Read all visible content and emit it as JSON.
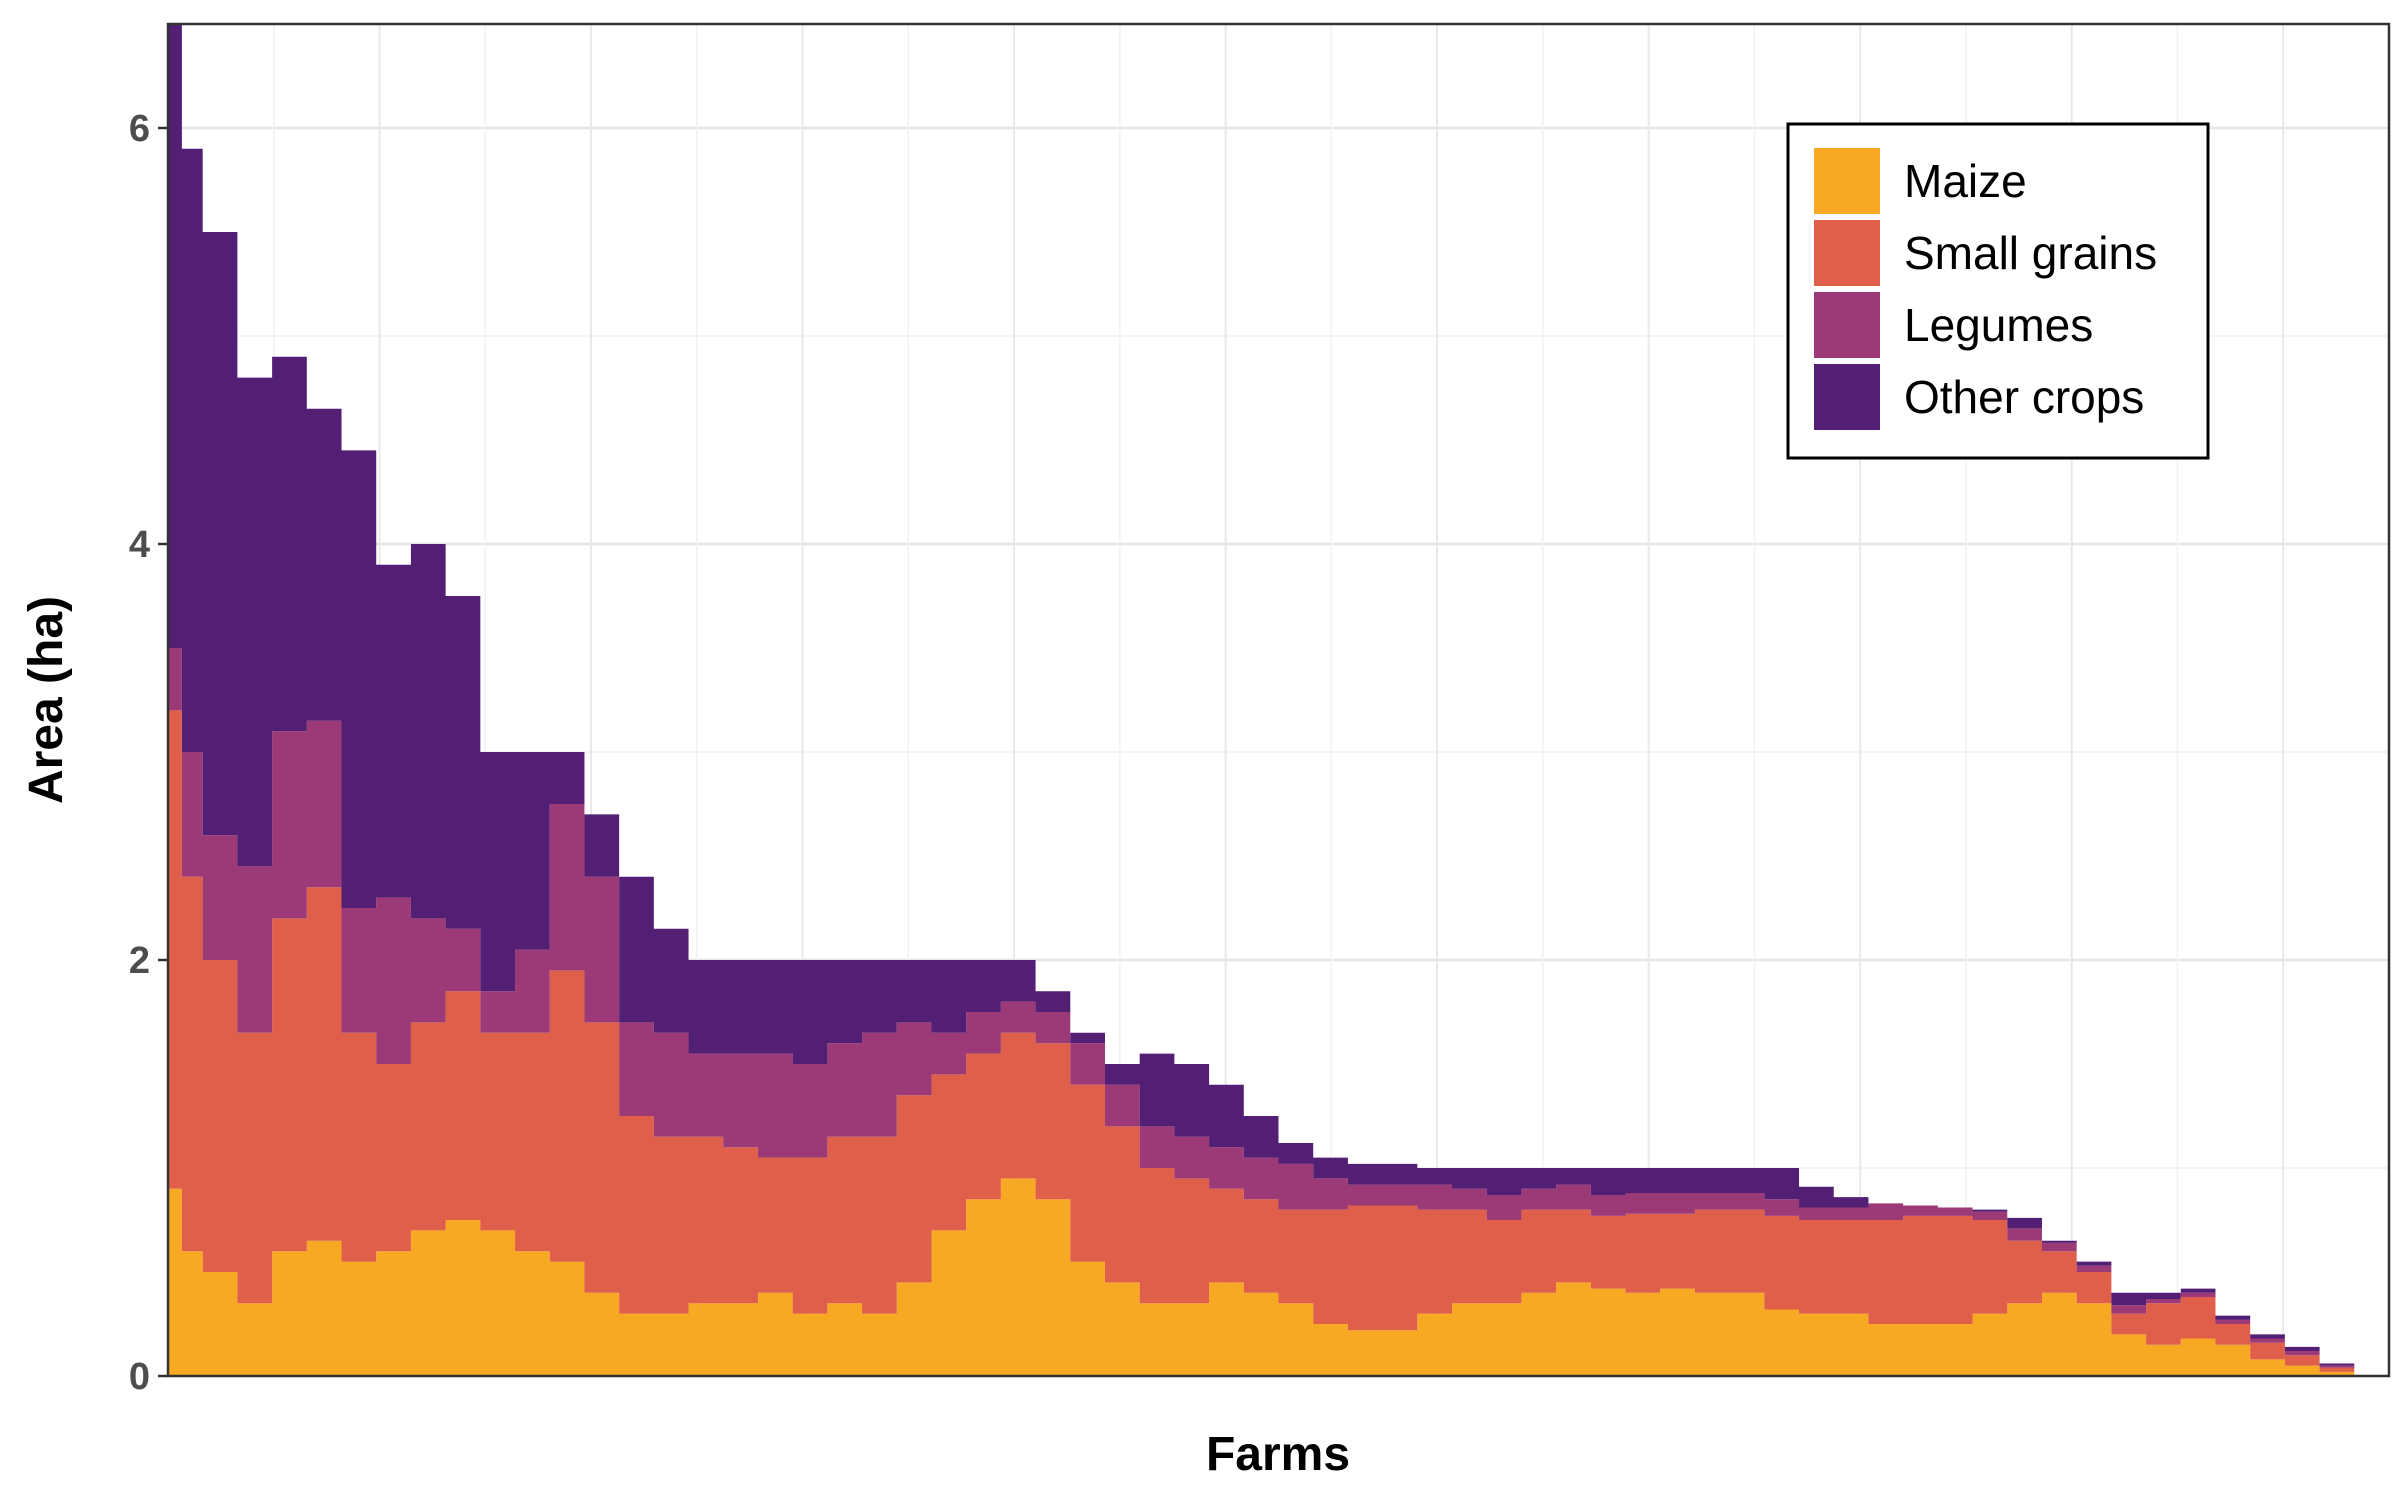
{
  "chart_data": {
    "type": "area",
    "xlabel": "Farms",
    "ylabel": "Area (ha)",
    "xlim": [
      0,
      320
    ],
    "ylim": [
      0,
      6.5
    ],
    "yticks": [
      0,
      2,
      4,
      6
    ],
    "ytick_labels": [
      "0",
      "2",
      "4",
      "6"
    ],
    "grid": true,
    "legend_position": "top-right",
    "x": [
      0,
      2,
      5,
      10,
      15,
      20,
      25,
      30,
      35,
      40,
      45,
      50,
      55,
      60,
      65,
      70,
      75,
      80,
      85,
      90,
      95,
      100,
      105,
      110,
      115,
      120,
      125,
      130,
      135,
      140,
      145,
      150,
      155,
      160,
      165,
      170,
      175,
      180,
      185,
      190,
      195,
      200,
      205,
      210,
      215,
      220,
      225,
      230,
      235,
      240,
      245,
      250,
      255,
      260,
      265,
      270,
      275,
      280,
      285,
      290,
      295,
      300,
      305,
      310,
      315,
      320
    ],
    "series": [
      {
        "name": "Maize",
        "color": "#F8A923",
        "values": [
          0.9,
          0.6,
          0.5,
          0.35,
          0.6,
          0.65,
          0.55,
          0.6,
          0.7,
          0.75,
          0.7,
          0.6,
          0.55,
          0.4,
          0.3,
          0.3,
          0.35,
          0.35,
          0.4,
          0.3,
          0.35,
          0.3,
          0.45,
          0.7,
          0.85,
          0.95,
          0.85,
          0.55,
          0.45,
          0.35,
          0.35,
          0.45,
          0.4,
          0.35,
          0.25,
          0.22,
          0.22,
          0.3,
          0.35,
          0.35,
          0.4,
          0.45,
          0.42,
          0.4,
          0.42,
          0.4,
          0.4,
          0.32,
          0.3,
          0.3,
          0.25,
          0.25,
          0.25,
          0.3,
          0.35,
          0.4,
          0.35,
          0.2,
          0.15,
          0.18,
          0.15,
          0.08,
          0.05,
          0.02,
          0.0,
          0.0
        ]
      },
      {
        "name": "Small grains",
        "color": "#E05F4B",
        "values": [
          2.3,
          1.8,
          1.5,
          1.3,
          1.6,
          1.7,
          1.1,
          0.9,
          1.0,
          1.1,
          0.95,
          1.05,
          1.4,
          1.3,
          0.95,
          0.85,
          0.8,
          0.75,
          0.65,
          0.75,
          0.8,
          0.85,
          0.9,
          0.75,
          0.7,
          0.7,
          0.75,
          0.85,
          0.75,
          0.65,
          0.6,
          0.45,
          0.45,
          0.45,
          0.55,
          0.6,
          0.6,
          0.5,
          0.45,
          0.4,
          0.4,
          0.35,
          0.35,
          0.38,
          0.36,
          0.4,
          0.4,
          0.45,
          0.45,
          0.45,
          0.5,
          0.52,
          0.52,
          0.45,
          0.3,
          0.2,
          0.15,
          0.1,
          0.2,
          0.2,
          0.1,
          0.08,
          0.05,
          0.02,
          0.0,
          0.0
        ]
      },
      {
        "name": "Legumes",
        "color": "#9B3A76",
        "values": [
          0.3,
          0.6,
          0.6,
          0.8,
          0.9,
          0.8,
          0.6,
          0.8,
          0.5,
          0.3,
          0.2,
          0.4,
          0.8,
          0.7,
          0.45,
          0.5,
          0.4,
          0.45,
          0.5,
          0.45,
          0.45,
          0.5,
          0.35,
          0.2,
          0.2,
          0.15,
          0.15,
          0.2,
          0.2,
          0.2,
          0.2,
          0.2,
          0.2,
          0.22,
          0.15,
          0.1,
          0.1,
          0.12,
          0.1,
          0.12,
          0.1,
          0.12,
          0.1,
          0.1,
          0.1,
          0.08,
          0.08,
          0.08,
          0.06,
          0.06,
          0.08,
          0.05,
          0.04,
          0.04,
          0.06,
          0.04,
          0.03,
          0.04,
          0.02,
          0.02,
          0.02,
          0.02,
          0.02,
          0.01,
          0.0,
          0.0
        ]
      },
      {
        "name": "Other crops",
        "color": "#531F74",
        "values": [
          3.0,
          2.9,
          2.9,
          2.35,
          1.8,
          1.5,
          2.2,
          1.6,
          1.8,
          1.6,
          1.15,
          0.95,
          0.25,
          0.3,
          0.7,
          0.5,
          0.45,
          0.45,
          0.45,
          0.5,
          0.4,
          0.35,
          0.3,
          0.35,
          0.25,
          0.2,
          0.1,
          0.05,
          0.1,
          0.35,
          0.35,
          0.3,
          0.2,
          0.1,
          0.1,
          0.1,
          0.1,
          0.08,
          0.1,
          0.13,
          0.1,
          0.08,
          0.13,
          0.12,
          0.12,
          0.12,
          0.12,
          0.15,
          0.1,
          0.05,
          0.0,
          0.0,
          0.0,
          0.01,
          0.05,
          0.01,
          0.02,
          0.06,
          0.03,
          0.02,
          0.02,
          0.02,
          0.02,
          0.01,
          0.0,
          0.0
        ]
      }
    ]
  }
}
